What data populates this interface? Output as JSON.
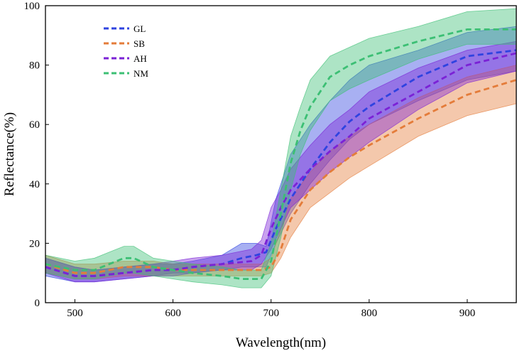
{
  "chart_data": {
    "type": "line",
    "xlabel": "Wavelength(nm)",
    "ylabel": "Reflectance(%)",
    "xlim": [
      470,
      950
    ],
    "ylim": [
      0,
      100
    ],
    "x_ticks": [
      500,
      600,
      700,
      800,
      900
    ],
    "y_ticks": [
      0,
      20,
      40,
      60,
      80,
      100
    ],
    "x_tick_labels": [
      "500",
      "600",
      "700",
      "800",
      "900"
    ],
    "y_tick_labels": [
      "0",
      "20",
      "40",
      "60",
      "80",
      "100"
    ],
    "grid": false,
    "legend_position": "top-left",
    "band": "shaded area around each dashed mean line shows the spread of reflectance",
    "series": [
      {
        "name": "GL",
        "color": "#2f43e0",
        "x": [
          470,
          500,
          520,
          550,
          580,
          600,
          620,
          650,
          670,
          685,
          695,
          705,
          720,
          740,
          760,
          780,
          800,
          850,
          900,
          950
        ],
        "mean": [
          12,
          9,
          9,
          10,
          11,
          11,
          12,
          13,
          15,
          16,
          17,
          25,
          35,
          45,
          54,
          61,
          66,
          76,
          83,
          85
        ],
        "lower": [
          9,
          7,
          7,
          8,
          9,
          10,
          10,
          11,
          12,
          12,
          12,
          20,
          30,
          40,
          48,
          55,
          60,
          68,
          75,
          78
        ],
        "upper": [
          15,
          12,
          11,
          12,
          13,
          13,
          14,
          16,
          20,
          20,
          19,
          35,
          50,
          60,
          68,
          75,
          80,
          85,
          91,
          93
        ]
      },
      {
        "name": "SB",
        "color": "#e47c3a",
        "x": [
          470,
          500,
          520,
          550,
          580,
          600,
          620,
          650,
          670,
          690,
          700,
          710,
          720,
          740,
          760,
          780,
          800,
          850,
          900,
          950
        ],
        "mean": [
          13,
          10,
          10,
          12,
          12,
          11,
          11,
          11,
          11,
          11,
          12,
          18,
          28,
          38,
          44,
          49,
          53,
          62,
          70,
          75
        ],
        "lower": [
          10,
          8,
          8,
          9,
          9,
          9,
          9,
          9,
          9,
          9,
          10,
          15,
          22,
          32,
          37,
          42,
          46,
          56,
          63,
          67
        ],
        "upper": [
          16,
          13,
          13,
          14,
          14,
          13,
          13,
          13,
          13,
          13,
          15,
          25,
          35,
          44,
          51,
          56,
          60,
          69,
          76,
          80
        ]
      },
      {
        "name": "AH",
        "color": "#7b22d6",
        "x": [
          470,
          500,
          520,
          550,
          580,
          600,
          620,
          650,
          680,
          690,
          700,
          710,
          720,
          740,
          760,
          780,
          800,
          850,
          900,
          950
        ],
        "mean": [
          12,
          9,
          9,
          10,
          11,
          11,
          12,
          13,
          14,
          16,
          25,
          32,
          38,
          45,
          51,
          56,
          62,
          71,
          80,
          84
        ],
        "lower": [
          10,
          7,
          7,
          8,
          9,
          9,
          10,
          11,
          11,
          13,
          18,
          25,
          32,
          38,
          44,
          49,
          54,
          65,
          74,
          78
        ],
        "upper": [
          15,
          12,
          11,
          12,
          13,
          14,
          15,
          16,
          18,
          21,
          32,
          38,
          45,
          53,
          60,
          65,
          71,
          79,
          85,
          88
        ]
      },
      {
        "name": "NM",
        "color": "#3cbf74",
        "x": [
          470,
          500,
          520,
          535,
          550,
          560,
          580,
          600,
          620,
          650,
          670,
          690,
          700,
          710,
          720,
          730,
          740,
          760,
          780,
          800,
          850,
          900,
          950
        ],
        "mean": [
          13,
          11,
          11,
          13,
          15,
          15,
          12,
          11,
          10,
          9,
          8,
          8,
          14,
          30,
          47,
          58,
          66,
          76,
          80,
          83,
          88,
          92,
          92
        ],
        "lower": [
          10,
          8,
          8,
          9,
          10,
          10,
          9,
          8,
          7,
          6,
          5,
          5,
          9,
          22,
          38,
          50,
          58,
          68,
          72,
          75,
          82,
          87,
          87
        ],
        "upper": [
          16,
          14,
          15,
          17,
          19,
          19,
          15,
          14,
          13,
          12,
          11,
          11,
          20,
          38,
          56,
          66,
          75,
          83,
          86,
          89,
          93,
          98,
          99
        ]
      }
    ]
  }
}
